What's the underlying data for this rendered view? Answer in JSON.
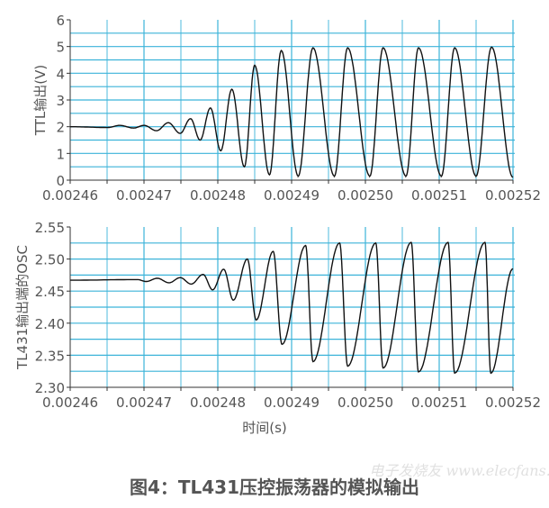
{
  "chart_data": [
    {
      "type": "line",
      "ylabel": "TTL输出(V)",
      "xlabel": "",
      "xlim": [
        0.00246,
        0.00252
      ],
      "ylim": [
        0,
        6
      ],
      "xticks": [
        "0.00246",
        "0.00247",
        "0.00248",
        "0.00249",
        "0.00250",
        "0.00251",
        "0.00252"
      ],
      "yticks": [
        "0",
        "1",
        "2",
        "3",
        "4",
        "5",
        "6"
      ],
      "grid": true,
      "line_color": "#111111",
      "grid_color": "#3bb3d9",
      "x": [
        0.00246,
        0.0024651,
        0.0024667,
        0.0024686,
        0.00247,
        0.0024717,
        0.0024733,
        0.0024749,
        0.0024763,
        0.0024776,
        0.002479,
        0.0024804,
        0.0024819,
        0.0024836,
        0.002485,
        0.002487,
        0.0024886,
        0.0024909,
        0.0024929,
        0.0024958,
        0.0024976,
        0.0025006,
        0.0025024,
        0.0025055,
        0.0025072,
        0.0025103,
        0.0025121,
        0.002515,
        0.0025171,
        0.00252
      ],
      "y": [
        2.0,
        1.97,
        2.05,
        1.95,
        2.05,
        1.85,
        2.15,
        1.75,
        2.3,
        1.5,
        2.7,
        1.1,
        3.4,
        0.5,
        4.3,
        0.2,
        4.85,
        0.15,
        4.95,
        0.15,
        4.95,
        0.15,
        4.95,
        0.15,
        4.95,
        0.15,
        4.95,
        0.15,
        4.98,
        0.1
      ]
    },
    {
      "type": "line",
      "ylabel": "TL431输出端的OSC",
      "xlabel": "时间(s)",
      "xlim": [
        0.00246,
        0.00252
      ],
      "ylim": [
        2.3,
        2.55
      ],
      "xticks": [
        "0.00246",
        "0.00247",
        "0.00248",
        "0.00249",
        "0.00250",
        "0.00251",
        "0.00252"
      ],
      "yticks": [
        "2.30",
        "2.35",
        "2.40",
        "2.45",
        "2.50",
        "2.55"
      ],
      "grid": true,
      "line_color": "#111111",
      "grid_color": "#3bb3d9",
      "x": [
        0.00246,
        0.0024691,
        0.0024703,
        0.0024718,
        0.0024734,
        0.0024749,
        0.0024764,
        0.002478,
        0.0024793,
        0.0024808,
        0.0024821,
        0.002484,
        0.0024852,
        0.0024875,
        0.0024887,
        0.0024919,
        0.0024929,
        0.0024965,
        0.0024976,
        0.0025014,
        0.0025024,
        0.0025062,
        0.0025072,
        0.0025112,
        0.0025121,
        0.0025162,
        0.002517,
        0.00252
      ],
      "y": [
        2.467,
        2.468,
        2.465,
        2.47,
        2.463,
        2.471,
        2.461,
        2.476,
        2.452,
        2.484,
        2.436,
        2.5,
        2.405,
        2.512,
        2.367,
        2.521,
        2.34,
        2.525,
        2.333,
        2.525,
        2.33,
        2.526,
        2.324,
        2.526,
        2.322,
        2.526,
        2.322,
        2.485
      ]
    }
  ],
  "caption": "图4：TL431压控振荡器的模拟输出",
  "watermark": "电子发烧友 www.elecfans.com"
}
